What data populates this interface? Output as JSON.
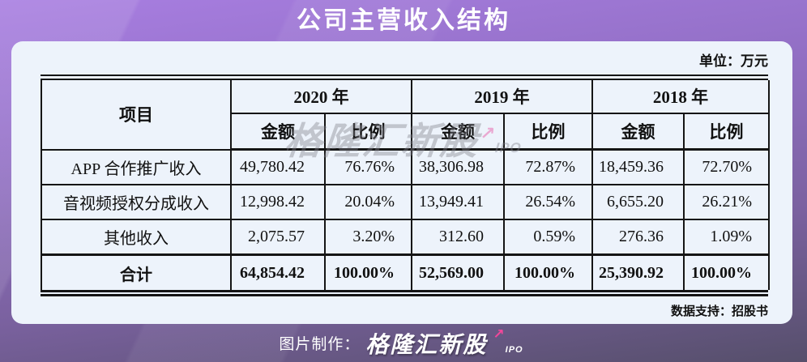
{
  "header": {
    "title": "公司主营收入结构"
  },
  "card": {
    "unit_label": "单位：万元",
    "data_support": "数据支持：招股书"
  },
  "table": {
    "item_header": "项目",
    "years": [
      {
        "label": "2020 年",
        "amount": "金额",
        "ratio": "比例"
      },
      {
        "label": "2019 年",
        "amount": "金额",
        "ratio": "比例"
      },
      {
        "label": "2018 年",
        "amount": "金额",
        "ratio": "比例"
      }
    ],
    "rows": [
      {
        "item": "APP 合作推广收入",
        "cells": [
          "49,780.42",
          "76.76%",
          "38,306.98",
          "72.87%",
          "18,459.36",
          "72.70%"
        ]
      },
      {
        "item": "音视频授权分成收入",
        "cells": [
          "12,998.42",
          "20.04%",
          "13,949.41",
          "26.54%",
          "6,655.20",
          "26.21%"
        ]
      },
      {
        "item": "其他收入",
        "cells": [
          "2,075.57",
          "3.20%",
          "312.60",
          "0.59%",
          "276.36",
          "1.09%"
        ]
      },
      {
        "item": "合计",
        "cells": [
          "64,854.42",
          "100.00%",
          "52,569.00",
          "100.00%",
          "25,390.92",
          "100.00%"
        ]
      }
    ]
  },
  "watermark": {
    "brand": "格隆汇新股",
    "arrow": "↗",
    "suffix": "IPO"
  },
  "footer": {
    "prefix": "图片制作：",
    "brand": "格隆汇新股",
    "arrow": "↗",
    "suffix": "IPO"
  },
  "colors": {
    "bg_top": "#a87ee1",
    "bg_bottom": "#564f6b",
    "card_bg": "#edf3fb",
    "table_border": "#151515",
    "title_text": "#ffffff",
    "cell_text": "#111111",
    "footer_text": "#ffffff",
    "arrow_pink": "#f2479a"
  },
  "chart_data": {
    "type": "table",
    "title": "公司主营收入结构",
    "unit": "万元",
    "years": [
      "2020",
      "2019",
      "2018"
    ],
    "columns": [
      "项目",
      "2020年 金额",
      "2020年 比例",
      "2019年 金额",
      "2019年 比例",
      "2018年 金额",
      "2018年 比例"
    ],
    "rows": [
      {
        "item": "APP 合作推广收入",
        "amounts": [
          49780.42,
          38306.98,
          18459.36
        ],
        "ratios_pct": [
          76.76,
          72.87,
          72.7
        ]
      },
      {
        "item": "音视频授权分成收入",
        "amounts": [
          12998.42,
          13949.41,
          6655.2
        ],
        "ratios_pct": [
          20.04,
          26.54,
          26.21
        ]
      },
      {
        "item": "其他收入",
        "amounts": [
          2075.57,
          312.6,
          276.36
        ],
        "ratios_pct": [
          3.2,
          0.59,
          1.09
        ]
      },
      {
        "item": "合计",
        "amounts": [
          64854.42,
          52569.0,
          25390.92
        ],
        "ratios_pct": [
          100.0,
          100.0,
          100.0
        ]
      }
    ],
    "source": "招股书"
  }
}
